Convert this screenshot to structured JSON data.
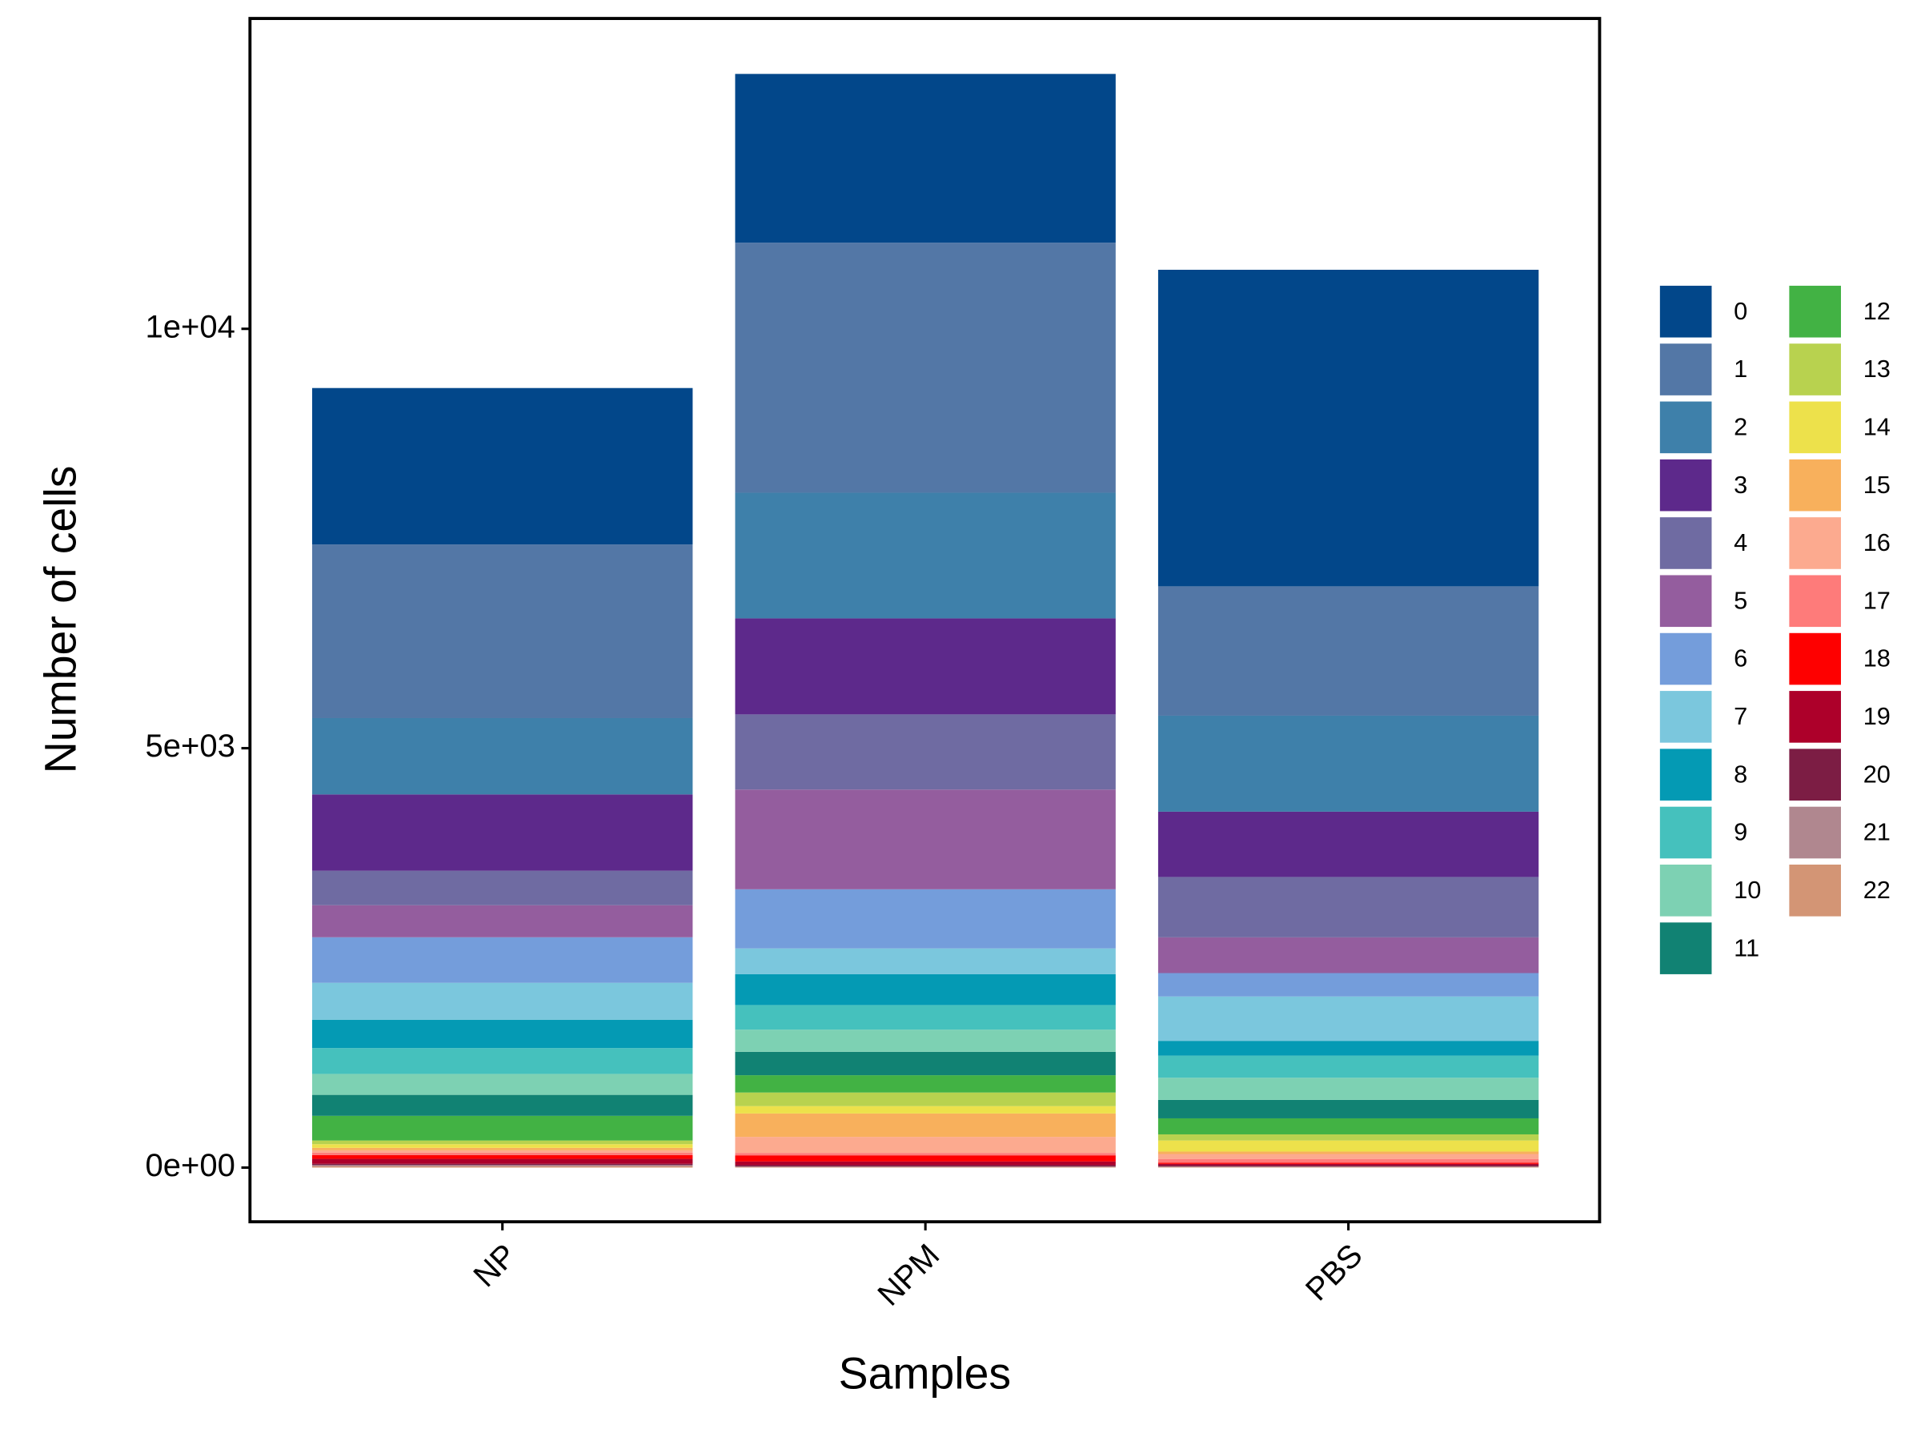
{
  "chart_data": {
    "type": "stacked-bar",
    "x_label": "Samples",
    "y_label": "Number of cells",
    "categories": [
      "NP",
      "NPM",
      "PBS"
    ],
    "ylim": [
      -646,
      13700
    ],
    "yticks": [
      {
        "value": 0,
        "label": "0e+00"
      },
      {
        "value": 5000,
        "label": "5e+03"
      },
      {
        "value": 10000,
        "label": "1e+04"
      }
    ],
    "series": [
      {
        "name": "0",
        "color": "#02478a",
        "values": [
          1865,
          2012,
          3774
        ]
      },
      {
        "name": "1",
        "color": "#5377a6",
        "values": [
          2070,
          2981,
          1542
        ]
      },
      {
        "name": "2",
        "color": "#3e80aa",
        "values": [
          910,
          1498,
          1145
        ]
      },
      {
        "name": "3",
        "color": "#5d298b",
        "values": [
          910,
          1145,
          778
        ]
      },
      {
        "name": "4",
        "color": "#6f6ba2",
        "values": [
          411,
          896,
          720
        ]
      },
      {
        "name": "5",
        "color": "#945d9e",
        "values": [
          382,
          1189,
          426
        ]
      },
      {
        "name": "6",
        "color": "#749ddb",
        "values": [
          543,
          705,
          279
        ]
      },
      {
        "name": "7",
        "color": "#7bc7dd",
        "values": [
          440,
          308,
          529
        ]
      },
      {
        "name": "8",
        "color": "#049ab4",
        "values": [
          338,
          367,
          176
        ]
      },
      {
        "name": "9",
        "color": "#45c1bd",
        "values": [
          308,
          294,
          264
        ]
      },
      {
        "name": "10",
        "color": "#7dd1b3",
        "values": [
          250,
          264,
          264
        ]
      },
      {
        "name": "11",
        "color": "#118273",
        "values": [
          250,
          279,
          220
        ]
      },
      {
        "name": "12",
        "color": "#42b244",
        "values": [
          294,
          206,
          191
        ]
      },
      {
        "name": "13",
        "color": "#b8d24f",
        "values": [
          44,
          162,
          73
        ]
      },
      {
        "name": "14",
        "color": "#ede14b",
        "values": [
          44,
          88,
          132
        ]
      },
      {
        "name": "15",
        "color": "#f8b05c",
        "values": [
          29,
          279,
          29
        ]
      },
      {
        "name": "16",
        "color": "#fcaa8f",
        "values": [
          29,
          191,
          59
        ]
      },
      {
        "name": "17",
        "color": "#fe7b7a",
        "values": [
          29,
          29,
          44
        ]
      },
      {
        "name": "18",
        "color": "#fe0000",
        "values": [
          44,
          73,
          15
        ]
      },
      {
        "name": "19",
        "color": "#ad002a",
        "values": [
          59,
          44,
          15
        ]
      },
      {
        "name": "20",
        "color": "#7c1d44",
        "values": [
          15,
          15,
          15
        ]
      },
      {
        "name": "21",
        "color": "#b0878f",
        "values": [
          15,
          7,
          7
        ]
      },
      {
        "name": "22",
        "color": "#d39575",
        "values": [
          15,
          7,
          7
        ]
      }
    ]
  }
}
